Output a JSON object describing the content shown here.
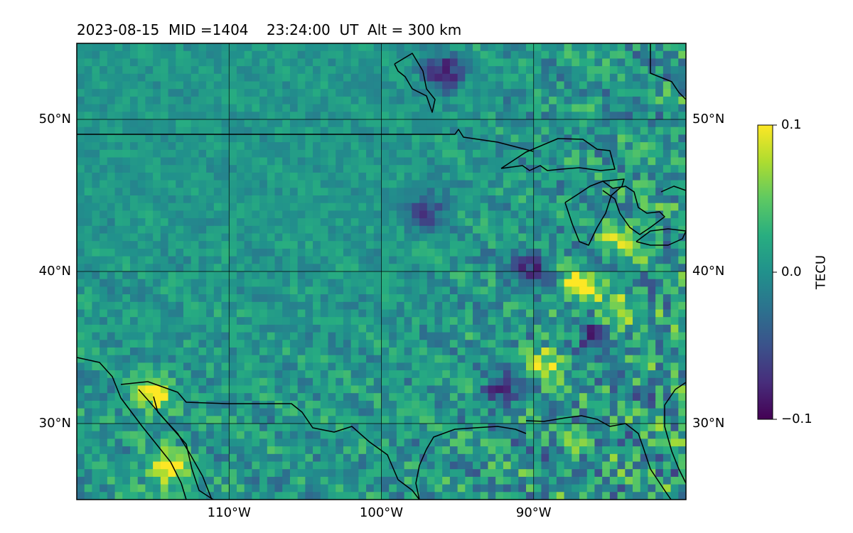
{
  "chart_data": {
    "type": "heatmap",
    "title": "2023-08-15  MID =1404    23:24:00  UT  Alt = 300 km",
    "map": {
      "lon_range": [
        -120,
        -80
      ],
      "lat_range": [
        25,
        55
      ],
      "lon_ticks": [
        {
          "value": -110,
          "label": "110°W"
        },
        {
          "value": -100,
          "label": "100°W"
        },
        {
          "value": -90,
          "label": "90°W"
        }
      ],
      "lat_ticks": [
        {
          "value": 50,
          "label": "50°N"
        },
        {
          "value": 40,
          "label": "40°N"
        },
        {
          "value": 30,
          "label": "30°N"
        }
      ],
      "grid": true,
      "cell_size_deg": 0.5
    },
    "colorbar": {
      "label": "TECU",
      "colormap": "viridis",
      "vmin": -0.1,
      "vmax": 0.1,
      "ticks": [
        {
          "value": 0.1,
          "label": "0.1"
        },
        {
          "value": 0.0,
          "label": "0.0"
        },
        {
          "value": -0.1,
          "label": "−0.1"
        }
      ]
    },
    "field_features": [
      {
        "lon": -115,
        "lat": 32,
        "value": 0.1
      },
      {
        "lon": -114,
        "lat": 27,
        "value": 0.1
      },
      {
        "lon": -87,
        "lat": 39,
        "value": 0.1
      },
      {
        "lon": -85,
        "lat": 37,
        "value": 0.1
      },
      {
        "lon": -84,
        "lat": 42,
        "value": 0.09
      },
      {
        "lon": -89,
        "lat": 34,
        "value": 0.08
      },
      {
        "lon": -96,
        "lat": 53,
        "value": -0.1
      },
      {
        "lon": -86,
        "lat": 36,
        "value": -0.1
      },
      {
        "lon": -90,
        "lat": 40,
        "value": -0.08
      },
      {
        "lon": -92,
        "lat": 32,
        "value": -0.09
      },
      {
        "lon": -97,
        "lat": 44,
        "value": -0.07
      }
    ]
  }
}
